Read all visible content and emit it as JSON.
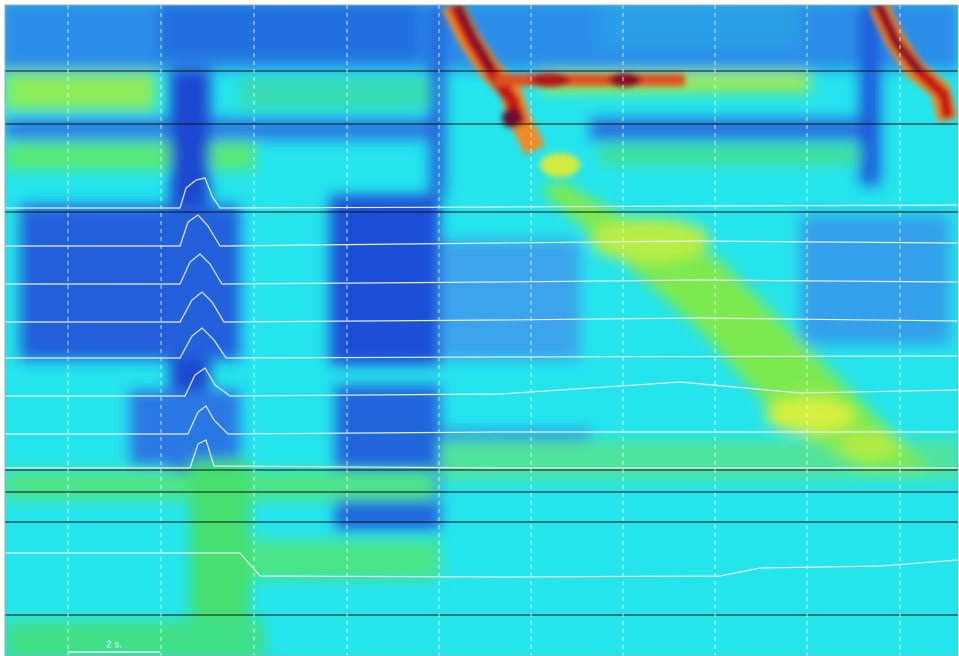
{
  "scale_label": "2 s."
}
